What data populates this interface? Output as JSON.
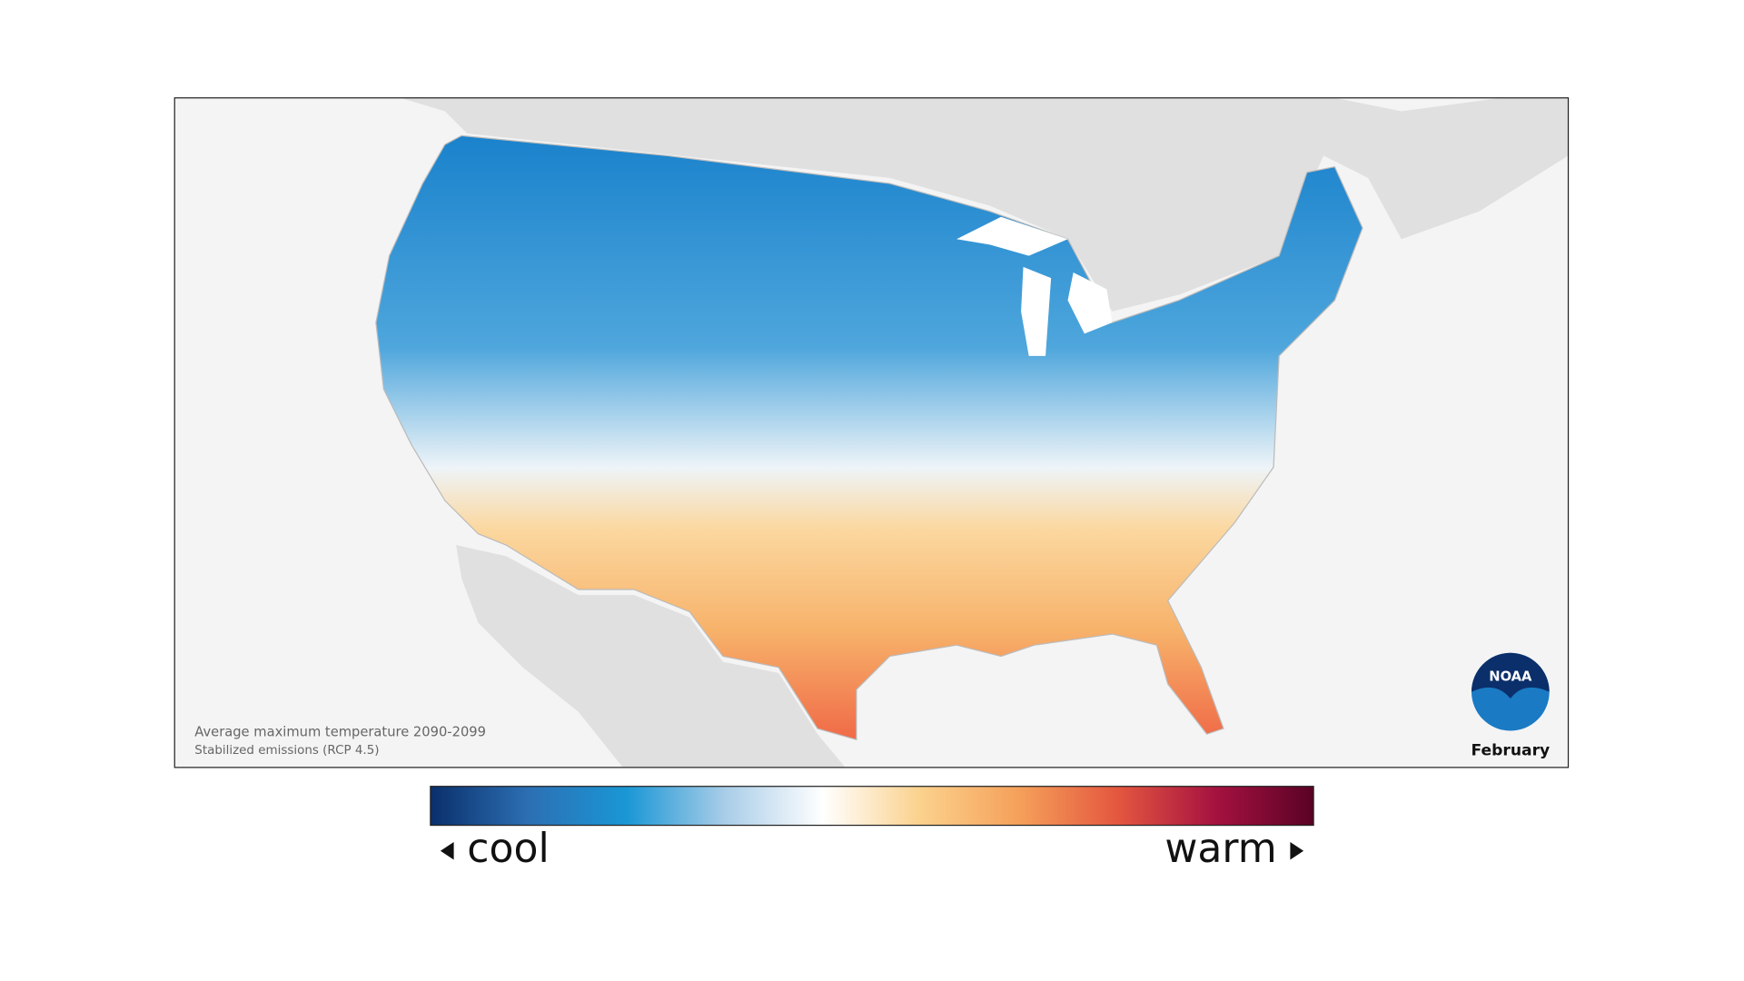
{
  "map": {
    "caption_line1": "Average maximum temperature 2090-2099",
    "caption_line2": "Stabilized emissions (RCP 4.5)",
    "month": "February",
    "logo_text": "NOAA"
  },
  "legend": {
    "low_label": "cool",
    "high_label": "warm",
    "colors": [
      "#0a2f6b",
      "#2c6fb3",
      "#1a97d5",
      "#a9cde8",
      "#ffffff",
      "#fbd18c",
      "#f5a05a",
      "#e4573f",
      "#a51240",
      "#5a0225"
    ]
  }
}
